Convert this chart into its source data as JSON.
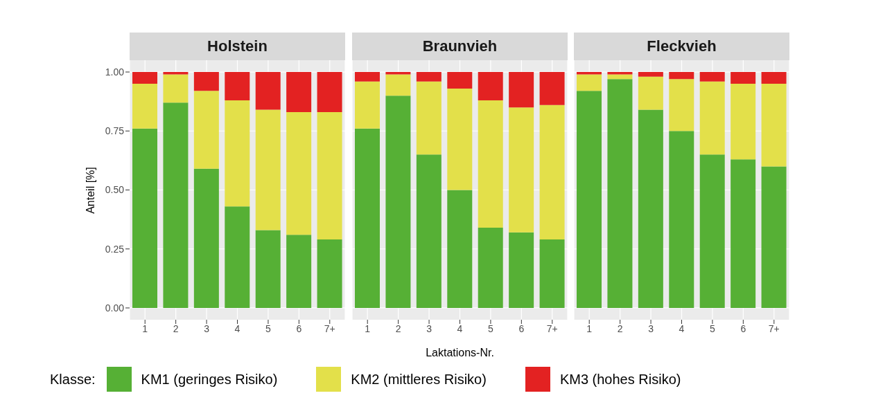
{
  "chart_data": [
    {
      "type": "bar",
      "title": "Holstein",
      "ylabel": "Anteil [%]",
      "legend_title": "Klasse:",
      "legend": "bottom",
      "stacked": true,
      "grid": true,
      "categories": [
        "1",
        "2",
        "3",
        "4",
        "5",
        "6",
        "7+"
      ],
      "ylim": [
        -0.05,
        1.05
      ],
      "yticks": [
        {
          "value": 0,
          "label": "0.00"
        },
        {
          "value": 0.25,
          "label": "0.25"
        },
        {
          "value": 0.5,
          "label": "0.50"
        },
        {
          "value": 0.75,
          "label": "0.75"
        },
        {
          "value": 1,
          "label": "1.00"
        }
      ],
      "series": [
        {
          "name": "KM1 (geringes Risiko)",
          "color": "#56b035",
          "values": [
            0.76,
            0.87,
            0.59,
            0.43,
            0.33,
            0.31,
            0.29
          ]
        },
        {
          "name": "KM2 (mittleres Risiko)",
          "color": "#e3e04a",
          "values": [
            0.19,
            0.12,
            0.33,
            0.45,
            0.51,
            0.52,
            0.54
          ]
        },
        {
          "name": "KM3 (hohes Risiko)",
          "color": "#e32222",
          "values": [
            0.05,
            0.01,
            0.08,
            0.12,
            0.16,
            0.17,
            0.17
          ]
        }
      ]
    },
    {
      "type": "bar",
      "title": "Braunvieh",
      "xlabel": "Laktations-Nr.",
      "stacked": true,
      "grid": true,
      "tick_labels": "x",
      "categories": [
        "1",
        "2",
        "3",
        "4",
        "5",
        "6",
        "7+"
      ],
      "ylim": [
        -0.05,
        1.05
      ],
      "yticks": [
        0,
        0.25,
        0.5,
        0.75,
        1
      ],
      "series": [
        {
          "color": "#56b035",
          "values": [
            0.76,
            0.9,
            0.65,
            0.5,
            0.34,
            0.32,
            0.29
          ]
        },
        {
          "color": "#e3e04a",
          "values": [
            0.2,
            0.09,
            0.31,
            0.43,
            0.54,
            0.53,
            0.57
          ]
        },
        {
          "color": "#e32222",
          "values": [
            0.04,
            0.01,
            0.04,
            0.07,
            0.12,
            0.15,
            0.14
          ]
        }
      ]
    },
    {
      "type": "bar",
      "title": "Fleckvieh",
      "stacked": true,
      "grid": true,
      "tick_labels": "x",
      "categories": [
        "1",
        "2",
        "3",
        "4",
        "5",
        "6",
        "7+"
      ],
      "ylim": [
        -0.05,
        1.05
      ],
      "yticks": [
        0,
        0.25,
        0.5,
        0.75,
        1
      ],
      "series": [
        {
          "color": "#56b035",
          "values": [
            0.92,
            0.97,
            0.84,
            0.75,
            0.65,
            0.63,
            0.6
          ]
        },
        {
          "color": "#e3e04a",
          "values": [
            0.07,
            0.02,
            0.14,
            0.22,
            0.31,
            0.32,
            0.35
          ]
        },
        {
          "color": "#e32222",
          "values": [
            0.01,
            0.01,
            0.02,
            0.03,
            0.04,
            0.05,
            0.05
          ]
        }
      ]
    }
  ]
}
